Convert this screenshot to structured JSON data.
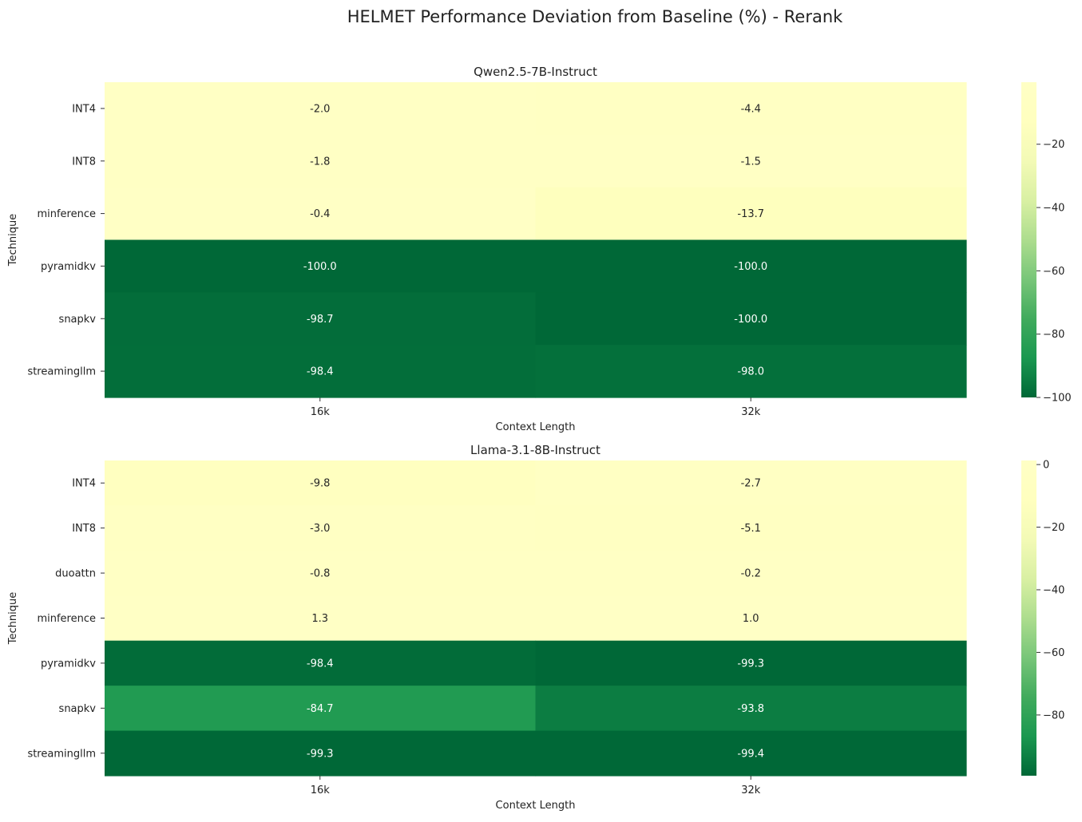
{
  "title": "HELMET Performance Deviation from Baseline (%) - Rerank",
  "chart_data": [
    {
      "type": "heatmap",
      "title": "Qwen2.5-7B-Instruct",
      "xlabel": "Context Length",
      "ylabel": "Technique",
      "x_categories": [
        "16k",
        "32k"
      ],
      "y_categories": [
        "INT4",
        "INT8",
        "minference",
        "pyramidkv",
        "snapkv",
        "streamingllm"
      ],
      "values": [
        [
          -2.0,
          -4.4
        ],
        [
          -1.8,
          -1.5
        ],
        [
          -0.4,
          -13.7
        ],
        [
          -100.0,
          -100.0
        ],
        [
          -98.7,
          -100.0
        ],
        [
          -98.4,
          -98.0
        ]
      ],
      "value_labels": [
        [
          "-2.0",
          "-4.4"
        ],
        [
          "-1.8",
          "-1.5"
        ],
        [
          "-0.4",
          "-13.7"
        ],
        [
          "-100.0",
          "-100.0"
        ],
        [
          "-98.7",
          "-100.0"
        ],
        [
          "-98.4",
          "-98.0"
        ]
      ],
      "colormap": "YlGn_r",
      "vmin": -100.0,
      "vmax": -0.4,
      "colorbar_ticks": [
        -20,
        -40,
        -60,
        -80,
        -100
      ],
      "colorbar_tick_labels": [
        "−20",
        "−40",
        "−60",
        "−80",
        "−100"
      ]
    },
    {
      "type": "heatmap",
      "title": "Llama-3.1-8B-Instruct",
      "xlabel": "Context Length",
      "ylabel": "Technique",
      "x_categories": [
        "16k",
        "32k"
      ],
      "y_categories": [
        "INT4",
        "INT8",
        "duoattn",
        "minference",
        "pyramidkv",
        "snapkv",
        "streamingllm"
      ],
      "values": [
        [
          -9.8,
          -2.7
        ],
        [
          -3.0,
          -5.1
        ],
        [
          -0.8,
          -0.2
        ],
        [
          1.3,
          1.0
        ],
        [
          -98.4,
          -99.3
        ],
        [
          -84.7,
          -93.8
        ],
        [
          -99.3,
          -99.4
        ]
      ],
      "value_labels": [
        [
          "-9.8",
          "-2.7"
        ],
        [
          "-3.0",
          "-5.1"
        ],
        [
          "-0.8",
          "-0.2"
        ],
        [
          "1.3",
          "1.0"
        ],
        [
          "-98.4",
          "-99.3"
        ],
        [
          "-84.7",
          "-93.8"
        ],
        [
          "-99.3",
          "-99.4"
        ]
      ],
      "colormap": "YlGn_r",
      "vmin": -99.4,
      "vmax": 1.3,
      "colorbar_ticks": [
        0,
        -20,
        -40,
        -60,
        -80
      ],
      "colorbar_tick_labels": [
        "0",
        "−20",
        "−40",
        "−60",
        "−80"
      ]
    }
  ]
}
